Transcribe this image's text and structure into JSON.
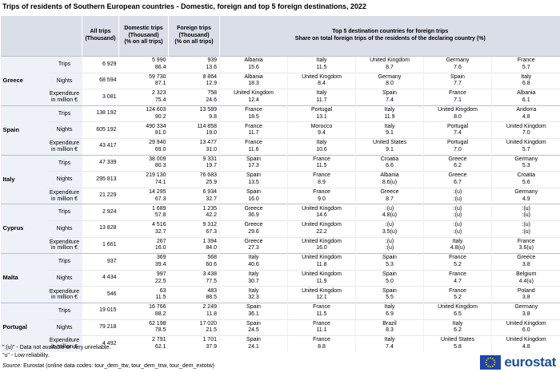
{
  "title": "Trips of residents of Southern European countries - Domestic, foreign and top 5 foreign destinations, 2022",
  "header": {
    "all": [
      "All trips",
      "(Thousand)"
    ],
    "domestic": [
      "Domestic trips",
      "(Thousand)",
      "(% on all trips)"
    ],
    "foreign": [
      "Foreign trips",
      "(Thousand)",
      "(% on all trips)"
    ],
    "top5": [
      "Top 5 destination countries for foreign trips",
      "Share on total foreign trips of the residents of the declaring country (%)"
    ]
  },
  "countries": [
    {
      "name": "Greece",
      "rows": [
        {
          "measure": "Trips",
          "all": "6 929",
          "domestic": [
            "5 990",
            "86.4"
          ],
          "foreign": [
            "939",
            "13.6"
          ],
          "destinations": [
            [
              "Albania",
              "15.6"
            ],
            [
              "Italy",
              "11.5"
            ],
            [
              "United Kingdom",
              "8.7"
            ],
            [
              "Germany",
              "7.6"
            ],
            [
              "France",
              "5.7"
            ]
          ]
        },
        {
          "measure": "Nights",
          "all": "68 594",
          "domestic": [
            "59 730",
            "87.1"
          ],
          "foreign": [
            "8 864",
            "12.9"
          ],
          "destinations": [
            [
              "Albania",
              "18.3"
            ],
            [
              "United Kingdom",
              "8.4"
            ],
            [
              "Germany",
              "8.0"
            ],
            [
              "Spain",
              "7.7"
            ],
            [
              "Italy",
              "6.8"
            ]
          ]
        },
        {
          "measure": "Expenditure in million €",
          "all": "3 081",
          "domestic": [
            "2 323",
            "75.4"
          ],
          "foreign": [
            "758",
            "24.6"
          ],
          "destinations": [
            [
              "United Kingdom",
              "12.4"
            ],
            [
              "Italy",
              "11.7"
            ],
            [
              "Spain",
              "7.4"
            ],
            [
              "France",
              "7.1"
            ],
            [
              "Albania",
              "6.1"
            ]
          ]
        }
      ]
    },
    {
      "name": "Spain",
      "rows": [
        {
          "measure": "Trips",
          "all": "138 192",
          "domestic": [
            "124 603",
            "90.2"
          ],
          "foreign": [
            "13 589",
            "9.8"
          ],
          "destinations": [
            [
              "France",
              "18.5"
            ],
            [
              "Portugal",
              "13.1"
            ],
            [
              "Italy",
              "11.9"
            ],
            [
              "United Kingdom",
              "8.0"
            ],
            [
              "Andorra",
              "4.8"
            ]
          ]
        },
        {
          "measure": "Nights",
          "all": "605 192",
          "domestic": [
            "490 334",
            "81.0"
          ],
          "foreign": [
            "114 858",
            "19.0"
          ],
          "destinations": [
            [
              "France",
              "11.7"
            ],
            [
              "Morocco",
              "9.4"
            ],
            [
              "Italy",
              "9.1"
            ],
            [
              "Portugal",
              "7.4"
            ],
            [
              "United Kingdom",
              "7.0"
            ]
          ]
        },
        {
          "measure": "Expenditure in million €",
          "all": "43 417",
          "domestic": [
            "29 940",
            "69.0"
          ],
          "foreign": [
            "13 477",
            "31.0"
          ],
          "destinations": [
            [
              "France",
              "11.6"
            ],
            [
              "Italy",
              "10.6"
            ],
            [
              "United States",
              "9.1"
            ],
            [
              "Portugal",
              "7.0"
            ],
            [
              "United Kingdom",
              "5.7"
            ]
          ]
        }
      ]
    },
    {
      "name": "Italy",
      "rows": [
        {
          "measure": "Trips",
          "all": "47 339",
          "domestic": [
            "38 009",
            "80.3"
          ],
          "foreign": [
            "9 331",
            "19.7"
          ],
          "destinations": [
            [
              "Spain",
              "17.3"
            ],
            [
              "France",
              "11.5"
            ],
            [
              "Croatia",
              "6.6"
            ],
            [
              "Greece",
              "6.2"
            ],
            [
              "Germany",
              "5.3"
            ]
          ]
        },
        {
          "measure": "Nights",
          "all": "295 813",
          "domestic": [
            "219 130",
            "74.1"
          ],
          "foreign": [
            "76 683",
            "25.9"
          ],
          "destinations": [
            [
              "Spain",
              "13.5"
            ],
            [
              "France",
              "8.9"
            ],
            [
              "Albania",
              "8.6(u)"
            ],
            [
              "Greece",
              "6.7"
            ],
            [
              "Croatia",
              "5.6"
            ]
          ]
        },
        {
          "measure": "Expenditure in million €",
          "all": "21 229",
          "domestic": [
            "14 295",
            "67.3"
          ],
          "foreign": [
            "6 934",
            "32.7"
          ],
          "destinations": [
            [
              "Spain",
              "16.0"
            ],
            [
              "France",
              "9.0"
            ],
            [
              "Greece",
              "8.7"
            ],
            [
              ":(u)",
              ":(u)"
            ],
            [
              "Germany",
              "4.9"
            ]
          ]
        }
      ]
    },
    {
      "name": "Cyprus",
      "rows": [
        {
          "measure": "Trips",
          "all": "2 924",
          "domestic": [
            "1 689",
            "57.8"
          ],
          "foreign": [
            "1 235",
            "42.2"
          ],
          "destinations": [
            [
              "Greece",
              "36.9"
            ],
            [
              "United Kingdom",
              "14.6"
            ],
            [
              ":(u)",
              "4.8(u)"
            ],
            [
              ":(u)",
              ":(u)"
            ],
            [
              ":(u)",
              ":(u)"
            ]
          ]
        },
        {
          "measure": "Nights",
          "all": "13 828",
          "domestic": [
            "4 516",
            "32.7"
          ],
          "foreign": [
            "9 312",
            "67.3"
          ],
          "destinations": [
            [
              "Greece",
              "29.6"
            ],
            [
              "United Kingdom",
              "22.2"
            ],
            [
              ":(u)",
              "3.5(u)"
            ],
            [
              ":(u)",
              ":(u)"
            ],
            [
              ":(u)",
              ":(u)"
            ]
          ]
        },
        {
          "measure": "Expenditure in million €",
          "all": "1 661",
          "domestic": [
            "267",
            "16.0"
          ],
          "foreign": [
            "1 394",
            "84.0"
          ],
          "destinations": [
            [
              "Greece",
              "27.3"
            ],
            [
              "United Kingdom",
              "16.0"
            ],
            [
              ":(u)",
              ":(u)"
            ],
            [
              "Italy",
              "4.8(u)"
            ],
            [
              "France",
              "3.6(u)"
            ]
          ]
        }
      ]
    },
    {
      "name": "Malta",
      "rows": [
        {
          "measure": "Trips",
          "all": "937",
          "domestic": [
            "369",
            "39.4"
          ],
          "foreign": [
            "568",
            "60.6"
          ],
          "destinations": [
            [
              "Italy",
              "40.6"
            ],
            [
              "United Kingdom",
              "11.8"
            ],
            [
              "Spain",
              "5.3"
            ],
            [
              "France",
              "5.2"
            ],
            [
              "Greece",
              "3.8"
            ]
          ]
        },
        {
          "measure": "Nights",
          "all": "4 434",
          "domestic": [
            "997",
            "22.5"
          ],
          "foreign": [
            "3 438",
            "77.5"
          ],
          "destinations": [
            [
              "Italy",
              "30.7"
            ],
            [
              "United Kingdom",
              "11.9"
            ],
            [
              "Spain",
              "5.0"
            ],
            [
              "France",
              "4.7"
            ],
            [
              "Belgium",
              "4.4(u)"
            ]
          ]
        },
        {
          "measure": "Expenditure in million €",
          "all": "546",
          "domestic": [
            "63",
            "11.5"
          ],
          "foreign": [
            "483",
            "88.5"
          ],
          "destinations": [
            [
              "Italy",
              "32.3"
            ],
            [
              "United Kingdom",
              "12.1"
            ],
            [
              "Spain",
              "5.5"
            ],
            [
              "France",
              "5.2"
            ],
            [
              "Poland",
              "3.8"
            ]
          ]
        }
      ]
    },
    {
      "name": "Portugal",
      "rows": [
        {
          "measure": "Trips",
          "all": "19 015",
          "domestic": [
            "16 766",
            "88.2"
          ],
          "foreign": [
            "2 249",
            "11.8"
          ],
          "destinations": [
            [
              "Spain",
              "36.1"
            ],
            [
              "France",
              "11.5"
            ],
            [
              "Italy",
              "6.9"
            ],
            [
              "United Kingdom",
              "6.5"
            ],
            [
              "Germany",
              "3.8"
            ]
          ]
        },
        {
          "measure": "Nights",
          "all": "79 218",
          "domestic": [
            "62 198",
            "78.5"
          ],
          "foreign": [
            "17 020",
            "21.5"
          ],
          "destinations": [
            [
              "Spain",
              "24.5"
            ],
            [
              "France",
              "11.1"
            ],
            [
              "Brazil",
              "8.3"
            ],
            [
              "Italy",
              "6.2"
            ],
            [
              "United Kingdom",
              "6.0"
            ]
          ]
        },
        {
          "measure": "Expenditure in million €",
          "all": "4 492",
          "domestic": [
            "2 791",
            "62.1"
          ],
          "foreign": [
            "1 701",
            "37.9"
          ],
          "destinations": [
            [
              "Spain",
              "24.1"
            ],
            [
              "France",
              "8.8"
            ],
            [
              "Italy",
              "7.4"
            ],
            [
              "United States",
              "5.8"
            ],
            [
              "United Kingdom",
              "4.8"
            ]
          ]
        }
      ]
    }
  ],
  "footnotes": [
    "\":(u)\" - Data not available or very unreliable.",
    "\"u\" - Low reliability."
  ],
  "source": {
    "label": "Source:",
    "text": "Eurostat (online data codes: tour_dem_ttw, tour_dem_tnw, tour_dem_extotw)"
  },
  "logo": "eurostat"
}
